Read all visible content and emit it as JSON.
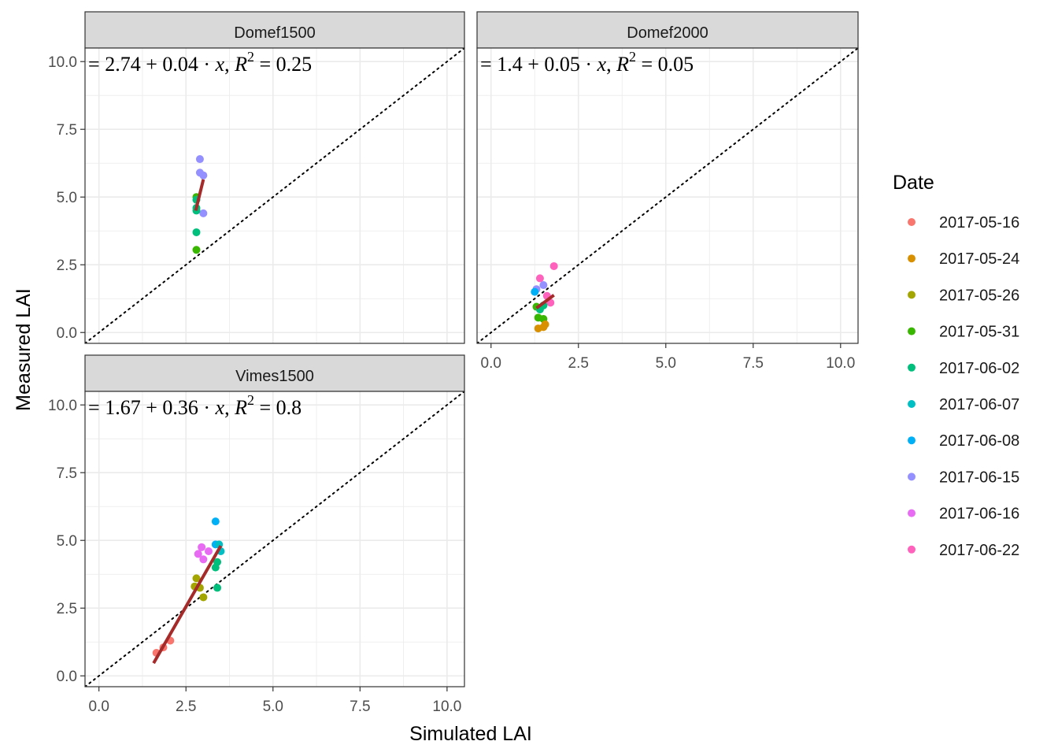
{
  "chart_data": {
    "type": "scatter",
    "xlabel": "Simulated LAI",
    "ylabel": "Measured LAI",
    "xlim": [
      -0.4,
      10.5
    ],
    "ylim": [
      -0.4,
      10.5
    ],
    "x_ticks": [
      "0.0",
      "2.5",
      "5.0",
      "7.5",
      "10.0"
    ],
    "y_ticks": [
      "0.0",
      "2.5",
      "5.0",
      "7.5",
      "10.0"
    ],
    "legend_title": "Date",
    "legend_position": "right",
    "series": [
      {
        "name": "2017-05-16",
        "color": "#F8766D"
      },
      {
        "name": "2017-05-24",
        "color": "#D89000"
      },
      {
        "name": "2017-05-26",
        "color": "#A3A500"
      },
      {
        "name": "2017-05-31",
        "color": "#39B600"
      },
      {
        "name": "2017-06-02",
        "color": "#00BF7D"
      },
      {
        "name": "2017-06-07",
        "color": "#00BFC4"
      },
      {
        "name": "2017-06-08",
        "color": "#00B0F6"
      },
      {
        "name": "2017-06-15",
        "color": "#9590FF"
      },
      {
        "name": "2017-06-16",
        "color": "#E76BF3"
      },
      {
        "name": "2017-06-22",
        "color": "#FF62BC"
      }
    ],
    "reference_line": "y = x (dotted)",
    "fit_line_color": "#A52A2A",
    "panels": [
      {
        "title": "Domef1500",
        "equation": {
          "intercept": "2.74",
          "slope": "0.04",
          "r2": "0.25"
        },
        "fit": {
          "x": [
            2.78,
            3.0
          ],
          "y": [
            4.5,
            5.65
          ]
        },
        "points": [
          {
            "x": 2.9,
            "y": 6.4,
            "date": "2017-06-15"
          },
          {
            "x": 2.9,
            "y": 5.9,
            "date": "2017-06-15"
          },
          {
            "x": 3.0,
            "y": 5.8,
            "date": "2017-06-15"
          },
          {
            "x": 3.0,
            "y": 4.4,
            "date": "2017-06-15"
          },
          {
            "x": 2.8,
            "y": 5.0,
            "date": "2017-05-31"
          },
          {
            "x": 2.8,
            "y": 4.9,
            "date": "2017-06-02"
          },
          {
            "x": 2.8,
            "y": 4.6,
            "date": "2017-06-02"
          },
          {
            "x": 2.8,
            "y": 4.5,
            "date": "2017-06-02"
          },
          {
            "x": 2.8,
            "y": 3.7,
            "date": "2017-06-02"
          },
          {
            "x": 2.8,
            "y": 3.05,
            "date": "2017-05-31"
          }
        ]
      },
      {
        "title": "Domef2000",
        "equation": {
          "intercept": "1.4",
          "slope": "0.05",
          "r2": "0.05"
        },
        "fit": {
          "x": [
            1.3,
            1.8
          ],
          "y": [
            0.9,
            1.38
          ]
        },
        "points": [
          {
            "x": 1.8,
            "y": 2.45,
            "date": "2017-06-22"
          },
          {
            "x": 1.4,
            "y": 2.0,
            "date": "2017-06-22"
          },
          {
            "x": 1.5,
            "y": 1.75,
            "date": "2017-06-15"
          },
          {
            "x": 1.3,
            "y": 1.6,
            "date": "2017-06-15"
          },
          {
            "x": 1.25,
            "y": 1.5,
            "date": "2017-06-08"
          },
          {
            "x": 1.6,
            "y": 1.35,
            "date": "2017-06-22"
          },
          {
            "x": 1.7,
            "y": 1.1,
            "date": "2017-06-22"
          },
          {
            "x": 1.5,
            "y": 1.0,
            "date": "2017-06-02"
          },
          {
            "x": 1.3,
            "y": 0.95,
            "date": "2017-05-31"
          },
          {
            "x": 1.4,
            "y": 0.85,
            "date": "2017-06-02"
          },
          {
            "x": 1.35,
            "y": 0.55,
            "date": "2017-05-31"
          },
          {
            "x": 1.5,
            "y": 0.5,
            "date": "2017-05-31"
          },
          {
            "x": 1.35,
            "y": 0.15,
            "date": "2017-05-24"
          },
          {
            "x": 1.5,
            "y": 0.2,
            "date": "2017-05-24"
          },
          {
            "x": 1.55,
            "y": 0.3,
            "date": "2017-05-24"
          }
        ]
      },
      {
        "title": "Vimes1500",
        "equation": {
          "intercept": "1.67",
          "slope": "0.36",
          "r2": "0.8"
        },
        "fit": {
          "x": [
            1.57,
            3.5
          ],
          "y": [
            0.47,
            4.8
          ]
        },
        "points": [
          {
            "x": 1.65,
            "y": 0.85,
            "date": "2017-05-16"
          },
          {
            "x": 1.85,
            "y": 1.05,
            "date": "2017-05-16"
          },
          {
            "x": 2.05,
            "y": 1.3,
            "date": "2017-05-16"
          },
          {
            "x": 2.8,
            "y": 3.6,
            "date": "2017-05-26"
          },
          {
            "x": 2.75,
            "y": 3.3,
            "date": "2017-05-26"
          },
          {
            "x": 2.9,
            "y": 3.25,
            "date": "2017-05-26"
          },
          {
            "x": 3.0,
            "y": 2.9,
            "date": "2017-05-26"
          },
          {
            "x": 2.95,
            "y": 4.75,
            "date": "2017-06-16"
          },
          {
            "x": 2.85,
            "y": 4.5,
            "date": "2017-06-16"
          },
          {
            "x": 3.0,
            "y": 4.3,
            "date": "2017-06-16"
          },
          {
            "x": 3.15,
            "y": 4.6,
            "date": "2017-06-16"
          },
          {
            "x": 3.35,
            "y": 5.7,
            "date": "2017-06-08"
          },
          {
            "x": 3.35,
            "y": 4.85,
            "date": "2017-06-08"
          },
          {
            "x": 3.45,
            "y": 4.85,
            "date": "2017-06-07"
          },
          {
            "x": 3.5,
            "y": 4.6,
            "date": "2017-06-07"
          },
          {
            "x": 3.4,
            "y": 4.2,
            "date": "2017-06-02"
          },
          {
            "x": 3.35,
            "y": 4.0,
            "date": "2017-06-02"
          },
          {
            "x": 3.4,
            "y": 3.25,
            "date": "2017-06-02"
          }
        ]
      }
    ]
  }
}
